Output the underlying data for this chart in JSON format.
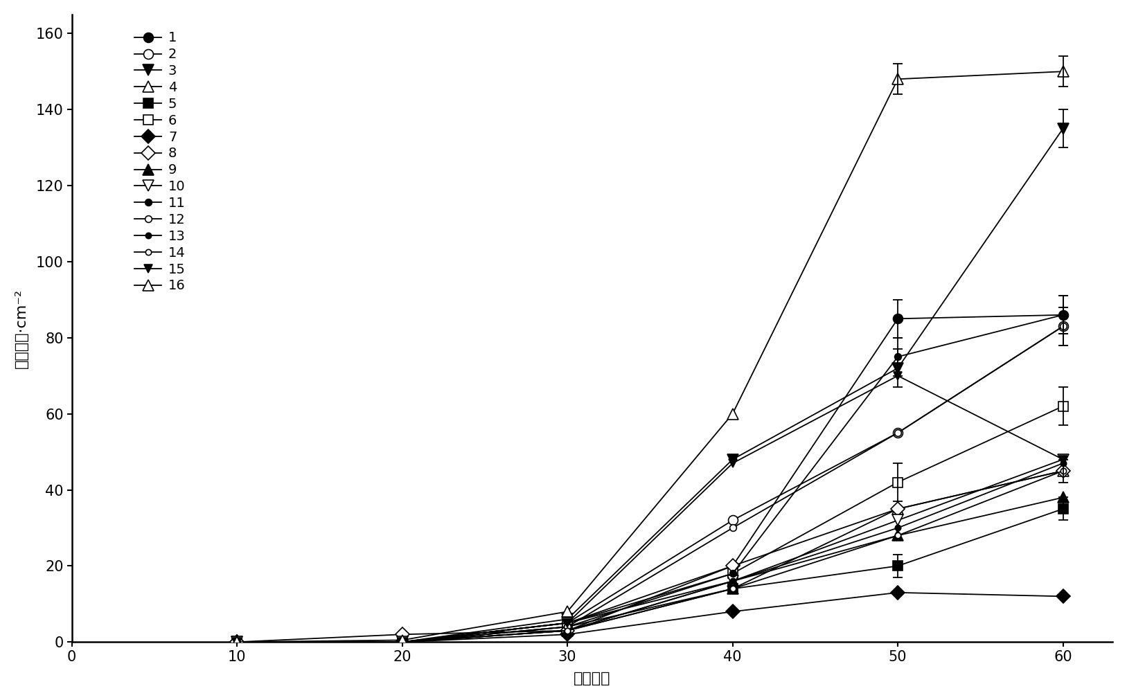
{
  "x": [
    10,
    20,
    30,
    40,
    50,
    60
  ],
  "series": [
    {
      "label": "1",
      "marker": "o",
      "mfc": "black",
      "ms": 10,
      "values": [
        0,
        0,
        5,
        20,
        85,
        86
      ],
      "yerr": [
        0,
        0,
        0,
        0,
        5,
        5
      ]
    },
    {
      "label": "2",
      "marker": "o",
      "mfc": "white",
      "ms": 10,
      "values": [
        0,
        0,
        5,
        32,
        55,
        83
      ],
      "yerr": [
        0,
        0,
        0,
        0,
        0,
        5
      ]
    },
    {
      "label": "3",
      "marker": "v",
      "mfc": "black",
      "ms": 11,
      "values": [
        0,
        0,
        6,
        48,
        72,
        135
      ],
      "yerr": [
        0,
        0,
        0,
        0,
        5,
        5
      ]
    },
    {
      "label": "4",
      "marker": "^",
      "mfc": "white",
      "ms": 11,
      "values": [
        0,
        0,
        4,
        14,
        35,
        45
      ],
      "yerr": [
        0,
        0,
        0,
        0,
        0,
        3
      ]
    },
    {
      "label": "5",
      "marker": "s",
      "mfc": "black",
      "ms": 10,
      "values": [
        0,
        0,
        3,
        14,
        20,
        35
      ],
      "yerr": [
        0,
        0,
        0,
        0,
        3,
        3
      ]
    },
    {
      "label": "6",
      "marker": "s",
      "mfc": "white",
      "ms": 10,
      "values": [
        0,
        0,
        5,
        18,
        42,
        62
      ],
      "yerr": [
        0,
        0,
        0,
        0,
        5,
        5
      ]
    },
    {
      "label": "7",
      "marker": "D",
      "mfc": "black",
      "ms": 10,
      "values": [
        0,
        0,
        2,
        8,
        13,
        12
      ],
      "yerr": [
        0,
        0,
        0,
        0,
        0,
        0
      ]
    },
    {
      "label": "8",
      "marker": "D",
      "mfc": "white",
      "ms": 10,
      "values": [
        0,
        2,
        3,
        20,
        35,
        45
      ],
      "yerr": [
        0,
        0,
        0,
        0,
        0,
        0
      ]
    },
    {
      "label": "9",
      "marker": "^",
      "mfc": "black",
      "ms": 11,
      "values": [
        0,
        0,
        3,
        16,
        28,
        38
      ],
      "yerr": [
        0,
        0,
        0,
        0,
        0,
        0
      ]
    },
    {
      "label": "10",
      "marker": "v",
      "mfc": "white",
      "ms": 11,
      "values": [
        0,
        0,
        5,
        16,
        32,
        48
      ],
      "yerr": [
        0,
        0,
        0,
        0,
        0,
        0
      ]
    },
    {
      "label": "11",
      "marker": "o",
      "mfc": "black",
      "ms": 7,
      "values": [
        0,
        0,
        4,
        18,
        75,
        86
      ],
      "yerr": [
        0,
        0,
        0,
        0,
        5,
        5
      ]
    },
    {
      "label": "12",
      "marker": "o",
      "mfc": "white",
      "ms": 7,
      "values": [
        0,
        0,
        4,
        30,
        55,
        83
      ],
      "yerr": [
        0,
        0,
        0,
        0,
        0,
        5
      ]
    },
    {
      "label": "13",
      "marker": "o",
      "mfc": "black",
      "ms": 6,
      "values": [
        0,
        0,
        3,
        16,
        30,
        47
      ],
      "yerr": [
        0,
        0,
        0,
        0,
        0,
        0
      ]
    },
    {
      "label": "14",
      "marker": "o",
      "mfc": "white",
      "ms": 6,
      "values": [
        0,
        0,
        3,
        14,
        28,
        45
      ],
      "yerr": [
        0,
        0,
        0,
        0,
        0,
        0
      ]
    },
    {
      "label": "15",
      "marker": "v",
      "mfc": "black",
      "ms": 9,
      "values": [
        0,
        0,
        5,
        47,
        70,
        48
      ],
      "yerr": [
        0,
        0,
        0,
        0,
        0,
        0
      ]
    },
    {
      "label": "16",
      "marker": "^",
      "mfc": "white",
      "ms": 12,
      "values": [
        0,
        0.5,
        8,
        60,
        148,
        150
      ],
      "yerr": [
        0,
        0,
        0,
        0,
        4,
        4
      ]
    }
  ],
  "xlabel": "时间／天",
  "ylabel": "密度／株·cm⁻²",
  "xlim": [
    0,
    63
  ],
  "ylim": [
    0,
    165
  ],
  "xticks": [
    0,
    10,
    20,
    30,
    40,
    50,
    60
  ],
  "yticks": [
    0,
    20,
    40,
    60,
    80,
    100,
    120,
    140,
    160
  ]
}
